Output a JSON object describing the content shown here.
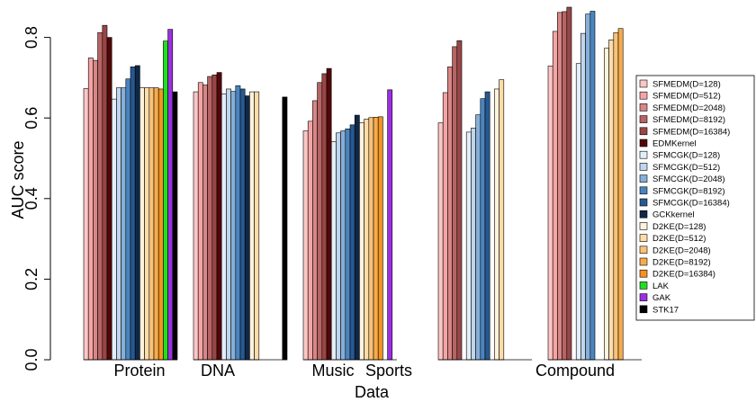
{
  "chart_data": {
    "type": "bar",
    "title": "",
    "xlabel": "Data",
    "ylabel": "AUC score",
    "ylim": [
      0,
      0.89
    ],
    "yticks": [
      "0.0",
      "0.2",
      "0.4",
      "0.6",
      "0.8"
    ],
    "grid": false,
    "legend_position": "right",
    "categories": [
      "Protein",
      "DNA",
      "Music",
      "Sports",
      "Compound"
    ],
    "series": [
      {
        "name": "SFMEDM(D=128)",
        "color": "#fcc6c6",
        "values": [
          0.673,
          0.665,
          0.568,
          0.588,
          0.729
        ]
      },
      {
        "name": "SFMEDM(D=512)",
        "color": "#f4a4a4",
        "values": [
          0.749,
          0.688,
          0.592,
          0.663,
          0.815
        ]
      },
      {
        "name": "SFMEDM(D=2048)",
        "color": "#d88686",
        "values": [
          0.743,
          0.682,
          0.643,
          0.727,
          0.862
        ]
      },
      {
        "name": "SFMEDM(D=8192)",
        "color": "#b76464",
        "values": [
          0.812,
          0.703,
          0.688,
          0.777,
          0.864
        ]
      },
      {
        "name": "SFMEDM(D=16384)",
        "color": "#984646",
        "values": [
          0.83,
          0.707,
          0.71,
          0.792,
          0.875
        ]
      },
      {
        "name": "EDMKernel",
        "color": "#520707",
        "values": [
          0.8,
          0.713,
          0.723,
          null,
          null
        ]
      },
      {
        "name": "SFMCGK(D=128)",
        "color": "#e3eef8",
        "values": [
          0.647,
          0.66,
          0.541,
          0.565,
          0.735
        ]
      },
      {
        "name": "SFMCGK(D=512)",
        "color": "#bfd6ec",
        "values": [
          0.675,
          0.672,
          0.563,
          0.575,
          0.81
        ]
      },
      {
        "name": "SFMCGK(D=2048)",
        "color": "#85afd9",
        "values": [
          0.675,
          0.666,
          0.568,
          0.608,
          0.858
        ]
      },
      {
        "name": "SFMCGK(D=8192)",
        "color": "#4a84bf",
        "values": [
          0.697,
          0.68,
          0.573,
          0.648,
          0.865
        ]
      },
      {
        "name": "SFMCGK(D=16384)",
        "color": "#275891",
        "values": [
          0.727,
          0.672,
          0.583,
          0.665,
          null
        ]
      },
      {
        "name": "GCKkernel",
        "color": "#0f2747",
        "values": [
          0.73,
          0.655,
          0.607,
          null,
          null
        ]
      },
      {
        "name": "D2KE(D=128)",
        "color": "#fff2de",
        "values": [
          0.675,
          0.665,
          0.588,
          0.672,
          0.773
        ]
      },
      {
        "name": "D2KE(D=512)",
        "color": "#fcdca8",
        "values": [
          0.675,
          0.665,
          0.597,
          0.695,
          0.794
        ]
      },
      {
        "name": "D2KE(D=2048)",
        "color": "#f9c27a",
        "values": [
          0.675,
          null,
          0.601,
          null,
          0.812
        ]
      },
      {
        "name": "D2KE(D=8192)",
        "color": "#f6ab4b",
        "values": [
          0.675,
          null,
          0.602,
          null,
          0.822
        ]
      },
      {
        "name": "D2KE(D=16384)",
        "color": "#f49320",
        "values": [
          0.672,
          null,
          0.603,
          null,
          null
        ]
      },
      {
        "name": "LAK",
        "color": "#22dd22",
        "values": [
          0.791,
          null,
          null,
          null,
          null
        ]
      },
      {
        "name": "GAK",
        "color": "#9b30e0",
        "values": [
          0.82,
          null,
          0.67,
          null,
          null
        ]
      },
      {
        "name": "STK17",
        "color": "#000000",
        "values": [
          0.665,
          0.652,
          null,
          null,
          null
        ]
      }
    ]
  }
}
